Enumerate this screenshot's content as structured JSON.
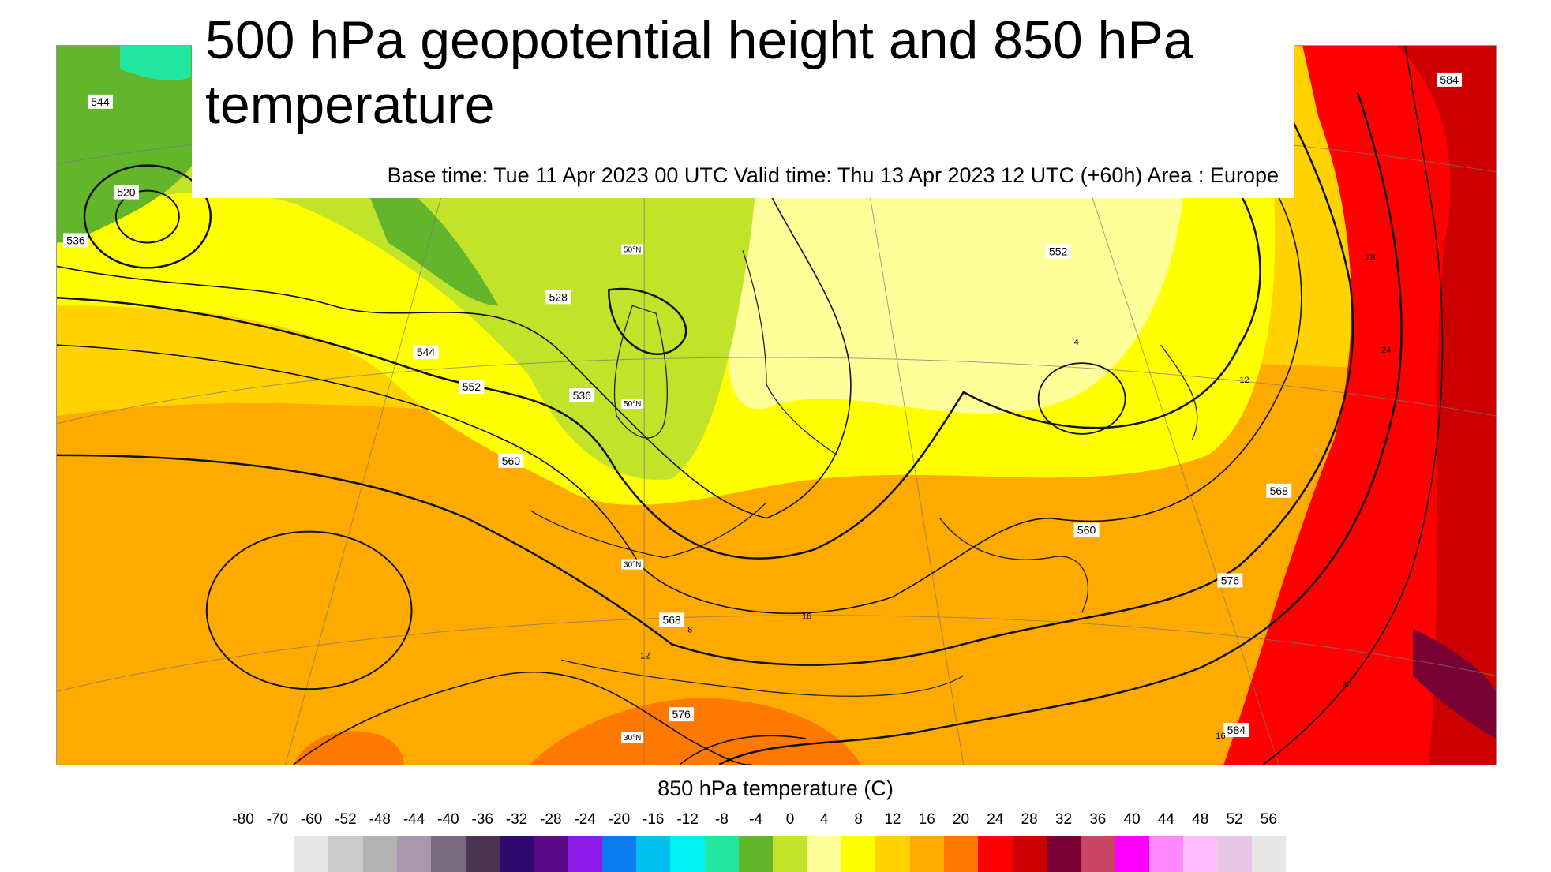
{
  "title": "500 hPa geopotential height and 850 hPa temperature",
  "subtitle": "Base time: Tue 11 Apr 2023 00 UTC Valid time: Thu 13 Apr 2023 12 UTC (+60h) Area : Europe",
  "legend": {
    "title": "850 hPa temperature (C)",
    "ticks": [
      "-80",
      "-70",
      "-60",
      "-52",
      "-48",
      "-44",
      "-40",
      "-36",
      "-32",
      "-28",
      "-24",
      "-20",
      "-16",
      "-12",
      "-8",
      "-4",
      "0",
      "4",
      "8",
      "12",
      "16",
      "20",
      "24",
      "28",
      "32",
      "36",
      "40",
      "44",
      "48",
      "52",
      "56"
    ],
    "colors": [
      "#e6e6e6",
      "#cccccc",
      "#b3b3b3",
      "#a997ad",
      "#7a6a80",
      "#4b3450",
      "#2d0a6e",
      "#5a0a87",
      "#8a1be8",
      "#0a7cf0",
      "#00c0f0",
      "#00f2f2",
      "#23e6a0",
      "#63b52c",
      "#c1e32a",
      "#ffff99",
      "#ffff00",
      "#ffd200",
      "#ffaa00",
      "#ff7800",
      "#ff0000",
      "#cc0000",
      "#780032",
      "#c84664",
      "#ff00ff",
      "#ff87ff",
      "#ffbeff",
      "#e6c8e6",
      "#e6e6e6"
    ]
  },
  "map": {
    "contour_labels": [
      "544",
      "536",
      "520",
      "528",
      "544",
      "552",
      "536",
      "560",
      "568",
      "576",
      "552",
      "560",
      "568",
      "576",
      "584",
      "584"
    ],
    "latitude_labels": [
      "50°N",
      "50°N",
      "30°N",
      "30°N"
    ],
    "temperature_labels": [
      "8",
      "12",
      "16",
      "4",
      "12",
      "16",
      "20",
      "24",
      "28"
    ]
  }
}
